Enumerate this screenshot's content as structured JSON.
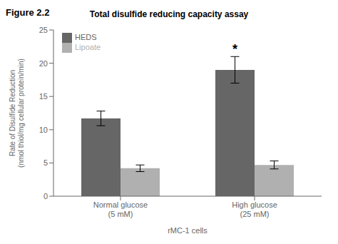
{
  "chart_data": {
    "type": "bar",
    "title": "Total disulfide reducing capacity assay",
    "xlabel": "rMC-1 cells",
    "ylabel": "Rate of Disulfide Reduction\n(nmol thiol/mg cellular protein/min)",
    "categories": [
      "Normal glucose\n(5 mM)",
      "High glucose\n(25 mM)"
    ],
    "series": [
      {
        "name": "HEDS",
        "color": "#666666",
        "values": [
          11.7,
          19.0
        ],
        "errors": [
          1.1,
          2.0
        ]
      },
      {
        "name": "Lipoate",
        "color": "#b0b0b0",
        "values": [
          4.2,
          4.7
        ],
        "errors": [
          0.5,
          0.6
        ]
      }
    ],
    "ylim": [
      0,
      25
    ],
    "yticks": [
      0,
      5,
      10,
      15,
      20,
      25
    ],
    "grid": false,
    "legend": "upper left",
    "annotations": [
      {
        "text": "Figure 2.2"
      },
      {
        "text": "*",
        "category": "High glucose\n(25 mM)",
        "series": "HEDS",
        "y": 21.5
      }
    ]
  }
}
